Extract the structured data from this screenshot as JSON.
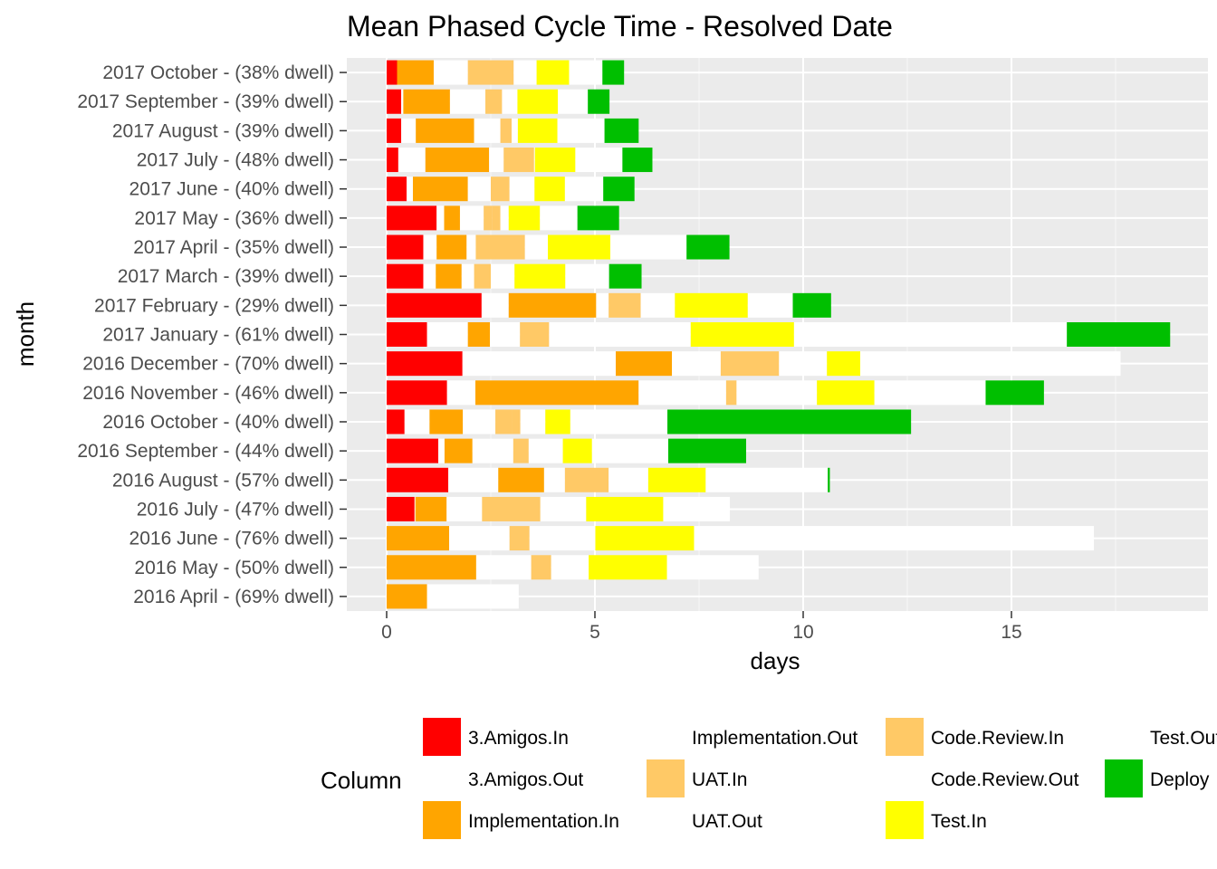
{
  "chart_data": {
    "type": "bar",
    "orientation": "horizontal",
    "stacked": true,
    "title": "Mean Phased Cycle Time - Resolved Date",
    "xlabel": "days",
    "ylabel": "month",
    "xlim": [
      -0.95,
      19.6
    ],
    "x_ticks": [
      0,
      5,
      10,
      15
    ],
    "grid": true,
    "legend_position": "bottom",
    "legend_title": "Column",
    "categories": [
      "2017 October - (38% dwell)",
      "2017 September - (39% dwell)",
      "2017 August - (39% dwell)",
      "2017 July - (48% dwell)",
      "2017 June - (40% dwell)",
      "2017 May - (36% dwell)",
      "2017 April - (35% dwell)",
      "2017 March - (39% dwell)",
      "2017 February - (29% dwell)",
      "2017 January - (61% dwell)",
      "2016 December - (70% dwell)",
      "2016 November - (46% dwell)",
      "2016 October - (40% dwell)",
      "2016 September - (44% dwell)",
      "2016 August - (57% dwell)",
      "2016 July - (47% dwell)",
      "2016 June - (76% dwell)",
      "2016 May - (50% dwell)",
      "2016 April - (69% dwell)"
    ],
    "series": [
      {
        "name": "3.Amigos.In",
        "color": "#ff0000",
        "values": [
          0.25,
          0.35,
          0.35,
          0.28,
          0.48,
          1.2,
          0.88,
          0.88,
          2.28,
          0.97,
          1.82,
          1.45,
          0.43,
          1.24,
          1.48,
          0.67,
          0,
          0,
          0
        ]
      },
      {
        "name": "3.Amigos.Out",
        "color": "#ffffff",
        "values": [
          0,
          0.05,
          0.35,
          0.65,
          0.15,
          0.18,
          0.32,
          0.3,
          0.65,
          0.98,
          3.68,
          0.68,
          0.6,
          0.15,
          1.2,
          0.02,
          0,
          0,
          0
        ]
      },
      {
        "name": "Implementation.In",
        "color": "#ffa500",
        "values": [
          0.88,
          1.12,
          1.4,
          1.53,
          1.32,
          0.38,
          0.72,
          0.62,
          2.1,
          0.53,
          1.35,
          3.92,
          0.8,
          0.67,
          1.1,
          0.75,
          1.5,
          2.15,
          0.97
        ]
      },
      {
        "name": "Implementation.Out",
        "color": "#ffffff",
        "values": [
          0.82,
          0.85,
          0.63,
          0.35,
          0.55,
          0.57,
          0.22,
          0.3,
          0.3,
          0.72,
          1.17,
          2.1,
          0.78,
          0.98,
          0.5,
          0.85,
          1.45,
          1.32,
          2.2
        ]
      },
      {
        "name": "UAT.In",
        "color": "#ffc966",
        "values": [
          1.1,
          0.4,
          0.27,
          0.73,
          0.45,
          0.2,
          1.18,
          0.4,
          0.77,
          0.7,
          1.4,
          0.25,
          0.4,
          0.37,
          1.05,
          1.4,
          0.48,
          0.48,
          0
        ]
      },
      {
        "name": "Code.Review.In",
        "color": "#ffc966",
        "values": [
          0,
          0,
          0,
          0,
          0,
          0.2,
          0,
          0,
          0,
          0,
          0,
          0,
          0.2,
          0,
          0,
          0,
          0,
          0,
          0
        ]
      },
      {
        "name": "UAT.Out",
        "color": "#ffffff",
        "values": [
          0.55,
          0.37,
          0.15,
          0.02,
          0.6,
          0.2,
          0.55,
          0.57,
          0.82,
          3.4,
          1.15,
          1.93,
          0.6,
          0.82,
          0.95,
          1.1,
          1.58,
          0.9,
          0
        ]
      },
      {
        "name": "Test.In",
        "color": "#ffff00",
        "values": [
          0.78,
          0.97,
          0.95,
          0.97,
          0.73,
          0.75,
          1.5,
          1.22,
          1.75,
          2.48,
          0.8,
          1.38,
          0.6,
          0.7,
          1.38,
          1.85,
          2.37,
          1.88,
          0
        ]
      },
      {
        "name": "Test.Out",
        "color": "#ffffff",
        "values": [
          0.8,
          0.72,
          1.13,
          1.13,
          0.92,
          0.9,
          1.83,
          1.05,
          1.08,
          6.55,
          6.25,
          2.67,
          2.33,
          1.83,
          2.93,
          1.6,
          9.6,
          2.2,
          0
        ]
      },
      {
        "name": "Deploy",
        "color": "#00bf00",
        "values": [
          0.52,
          0.52,
          0.82,
          0.72,
          0.75,
          1.0,
          1.03,
          0.78,
          0.92,
          2.48,
          0,
          1.4,
          5.85,
          1.87,
          0.05,
          0,
          0,
          0,
          0
        ]
      }
    ],
    "legend_items": [
      {
        "label": "3.Amigos.In",
        "color": "#ff0000"
      },
      {
        "label": "3.Amigos.Out",
        "color": "#ffffff"
      },
      {
        "label": "Implementation.In",
        "color": "#ffa500"
      },
      {
        "label": "Implementation.Out",
        "color": "#ffffff"
      },
      {
        "label": "UAT.In",
        "color": "#ffc966"
      },
      {
        "label": "UAT.Out",
        "color": "#ffffff"
      },
      {
        "label": "Code.Review.In",
        "color": "#ffc966"
      },
      {
        "label": "Code.Review.Out",
        "color": "#ffffff"
      },
      {
        "label": "Test.In",
        "color": "#ffff00"
      },
      {
        "label": "Test.Out",
        "color": "#ffffff"
      },
      {
        "label": "Deploy",
        "color": "#00bf00"
      }
    ]
  }
}
